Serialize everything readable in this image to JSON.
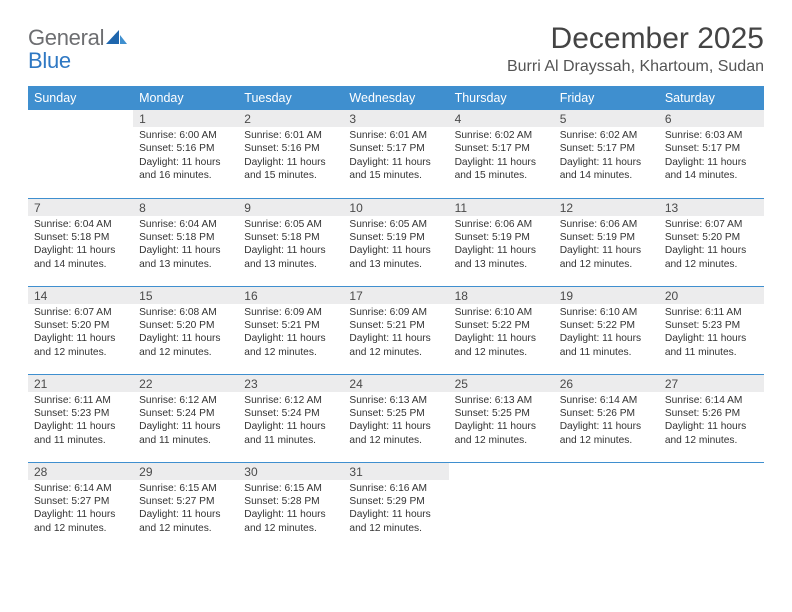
{
  "logo": {
    "general": "General",
    "blue": "Blue"
  },
  "title": "December 2025",
  "location": "Burri Al Drayssah, Khartoum, Sudan",
  "colors": {
    "header_bg": "#3f8fcf",
    "header_text": "#ffffff",
    "daynum_bg": "#ececed",
    "border": "#3f8fcf",
    "logo_gray": "#6d6e71",
    "logo_blue": "#2f78c3",
    "page_bg": "#ffffff"
  },
  "day_headers": [
    "Sunday",
    "Monday",
    "Tuesday",
    "Wednesday",
    "Thursday",
    "Friday",
    "Saturday"
  ],
  "weeks": [
    [
      {
        "n": "",
        "sunrise": "",
        "sunset": "",
        "daylight": ""
      },
      {
        "n": "1",
        "sunrise": "Sunrise: 6:00 AM",
        "sunset": "Sunset: 5:16 PM",
        "daylight": "Daylight: 11 hours and 16 minutes."
      },
      {
        "n": "2",
        "sunrise": "Sunrise: 6:01 AM",
        "sunset": "Sunset: 5:16 PM",
        "daylight": "Daylight: 11 hours and 15 minutes."
      },
      {
        "n": "3",
        "sunrise": "Sunrise: 6:01 AM",
        "sunset": "Sunset: 5:17 PM",
        "daylight": "Daylight: 11 hours and 15 minutes."
      },
      {
        "n": "4",
        "sunrise": "Sunrise: 6:02 AM",
        "sunset": "Sunset: 5:17 PM",
        "daylight": "Daylight: 11 hours and 15 minutes."
      },
      {
        "n": "5",
        "sunrise": "Sunrise: 6:02 AM",
        "sunset": "Sunset: 5:17 PM",
        "daylight": "Daylight: 11 hours and 14 minutes."
      },
      {
        "n": "6",
        "sunrise": "Sunrise: 6:03 AM",
        "sunset": "Sunset: 5:17 PM",
        "daylight": "Daylight: 11 hours and 14 minutes."
      }
    ],
    [
      {
        "n": "7",
        "sunrise": "Sunrise: 6:04 AM",
        "sunset": "Sunset: 5:18 PM",
        "daylight": "Daylight: 11 hours and 14 minutes."
      },
      {
        "n": "8",
        "sunrise": "Sunrise: 6:04 AM",
        "sunset": "Sunset: 5:18 PM",
        "daylight": "Daylight: 11 hours and 13 minutes."
      },
      {
        "n": "9",
        "sunrise": "Sunrise: 6:05 AM",
        "sunset": "Sunset: 5:18 PM",
        "daylight": "Daylight: 11 hours and 13 minutes."
      },
      {
        "n": "10",
        "sunrise": "Sunrise: 6:05 AM",
        "sunset": "Sunset: 5:19 PM",
        "daylight": "Daylight: 11 hours and 13 minutes."
      },
      {
        "n": "11",
        "sunrise": "Sunrise: 6:06 AM",
        "sunset": "Sunset: 5:19 PM",
        "daylight": "Daylight: 11 hours and 13 minutes."
      },
      {
        "n": "12",
        "sunrise": "Sunrise: 6:06 AM",
        "sunset": "Sunset: 5:19 PM",
        "daylight": "Daylight: 11 hours and 12 minutes."
      },
      {
        "n": "13",
        "sunrise": "Sunrise: 6:07 AM",
        "sunset": "Sunset: 5:20 PM",
        "daylight": "Daylight: 11 hours and 12 minutes."
      }
    ],
    [
      {
        "n": "14",
        "sunrise": "Sunrise: 6:07 AM",
        "sunset": "Sunset: 5:20 PM",
        "daylight": "Daylight: 11 hours and 12 minutes."
      },
      {
        "n": "15",
        "sunrise": "Sunrise: 6:08 AM",
        "sunset": "Sunset: 5:20 PM",
        "daylight": "Daylight: 11 hours and 12 minutes."
      },
      {
        "n": "16",
        "sunrise": "Sunrise: 6:09 AM",
        "sunset": "Sunset: 5:21 PM",
        "daylight": "Daylight: 11 hours and 12 minutes."
      },
      {
        "n": "17",
        "sunrise": "Sunrise: 6:09 AM",
        "sunset": "Sunset: 5:21 PM",
        "daylight": "Daylight: 11 hours and 12 minutes."
      },
      {
        "n": "18",
        "sunrise": "Sunrise: 6:10 AM",
        "sunset": "Sunset: 5:22 PM",
        "daylight": "Daylight: 11 hours and 12 minutes."
      },
      {
        "n": "19",
        "sunrise": "Sunrise: 6:10 AM",
        "sunset": "Sunset: 5:22 PM",
        "daylight": "Daylight: 11 hours and 11 minutes."
      },
      {
        "n": "20",
        "sunrise": "Sunrise: 6:11 AM",
        "sunset": "Sunset: 5:23 PM",
        "daylight": "Daylight: 11 hours and 11 minutes."
      }
    ],
    [
      {
        "n": "21",
        "sunrise": "Sunrise: 6:11 AM",
        "sunset": "Sunset: 5:23 PM",
        "daylight": "Daylight: 11 hours and 11 minutes."
      },
      {
        "n": "22",
        "sunrise": "Sunrise: 6:12 AM",
        "sunset": "Sunset: 5:24 PM",
        "daylight": "Daylight: 11 hours and 11 minutes."
      },
      {
        "n": "23",
        "sunrise": "Sunrise: 6:12 AM",
        "sunset": "Sunset: 5:24 PM",
        "daylight": "Daylight: 11 hours and 11 minutes."
      },
      {
        "n": "24",
        "sunrise": "Sunrise: 6:13 AM",
        "sunset": "Sunset: 5:25 PM",
        "daylight": "Daylight: 11 hours and 12 minutes."
      },
      {
        "n": "25",
        "sunrise": "Sunrise: 6:13 AM",
        "sunset": "Sunset: 5:25 PM",
        "daylight": "Daylight: 11 hours and 12 minutes."
      },
      {
        "n": "26",
        "sunrise": "Sunrise: 6:14 AM",
        "sunset": "Sunset: 5:26 PM",
        "daylight": "Daylight: 11 hours and 12 minutes."
      },
      {
        "n": "27",
        "sunrise": "Sunrise: 6:14 AM",
        "sunset": "Sunset: 5:26 PM",
        "daylight": "Daylight: 11 hours and 12 minutes."
      }
    ],
    [
      {
        "n": "28",
        "sunrise": "Sunrise: 6:14 AM",
        "sunset": "Sunset: 5:27 PM",
        "daylight": "Daylight: 11 hours and 12 minutes."
      },
      {
        "n": "29",
        "sunrise": "Sunrise: 6:15 AM",
        "sunset": "Sunset: 5:27 PM",
        "daylight": "Daylight: 11 hours and 12 minutes."
      },
      {
        "n": "30",
        "sunrise": "Sunrise: 6:15 AM",
        "sunset": "Sunset: 5:28 PM",
        "daylight": "Daylight: 11 hours and 12 minutes."
      },
      {
        "n": "31",
        "sunrise": "Sunrise: 6:16 AM",
        "sunset": "Sunset: 5:29 PM",
        "daylight": "Daylight: 11 hours and 12 minutes."
      },
      {
        "n": "",
        "sunrise": "",
        "sunset": "",
        "daylight": ""
      },
      {
        "n": "",
        "sunrise": "",
        "sunset": "",
        "daylight": ""
      },
      {
        "n": "",
        "sunrise": "",
        "sunset": "",
        "daylight": ""
      }
    ]
  ]
}
